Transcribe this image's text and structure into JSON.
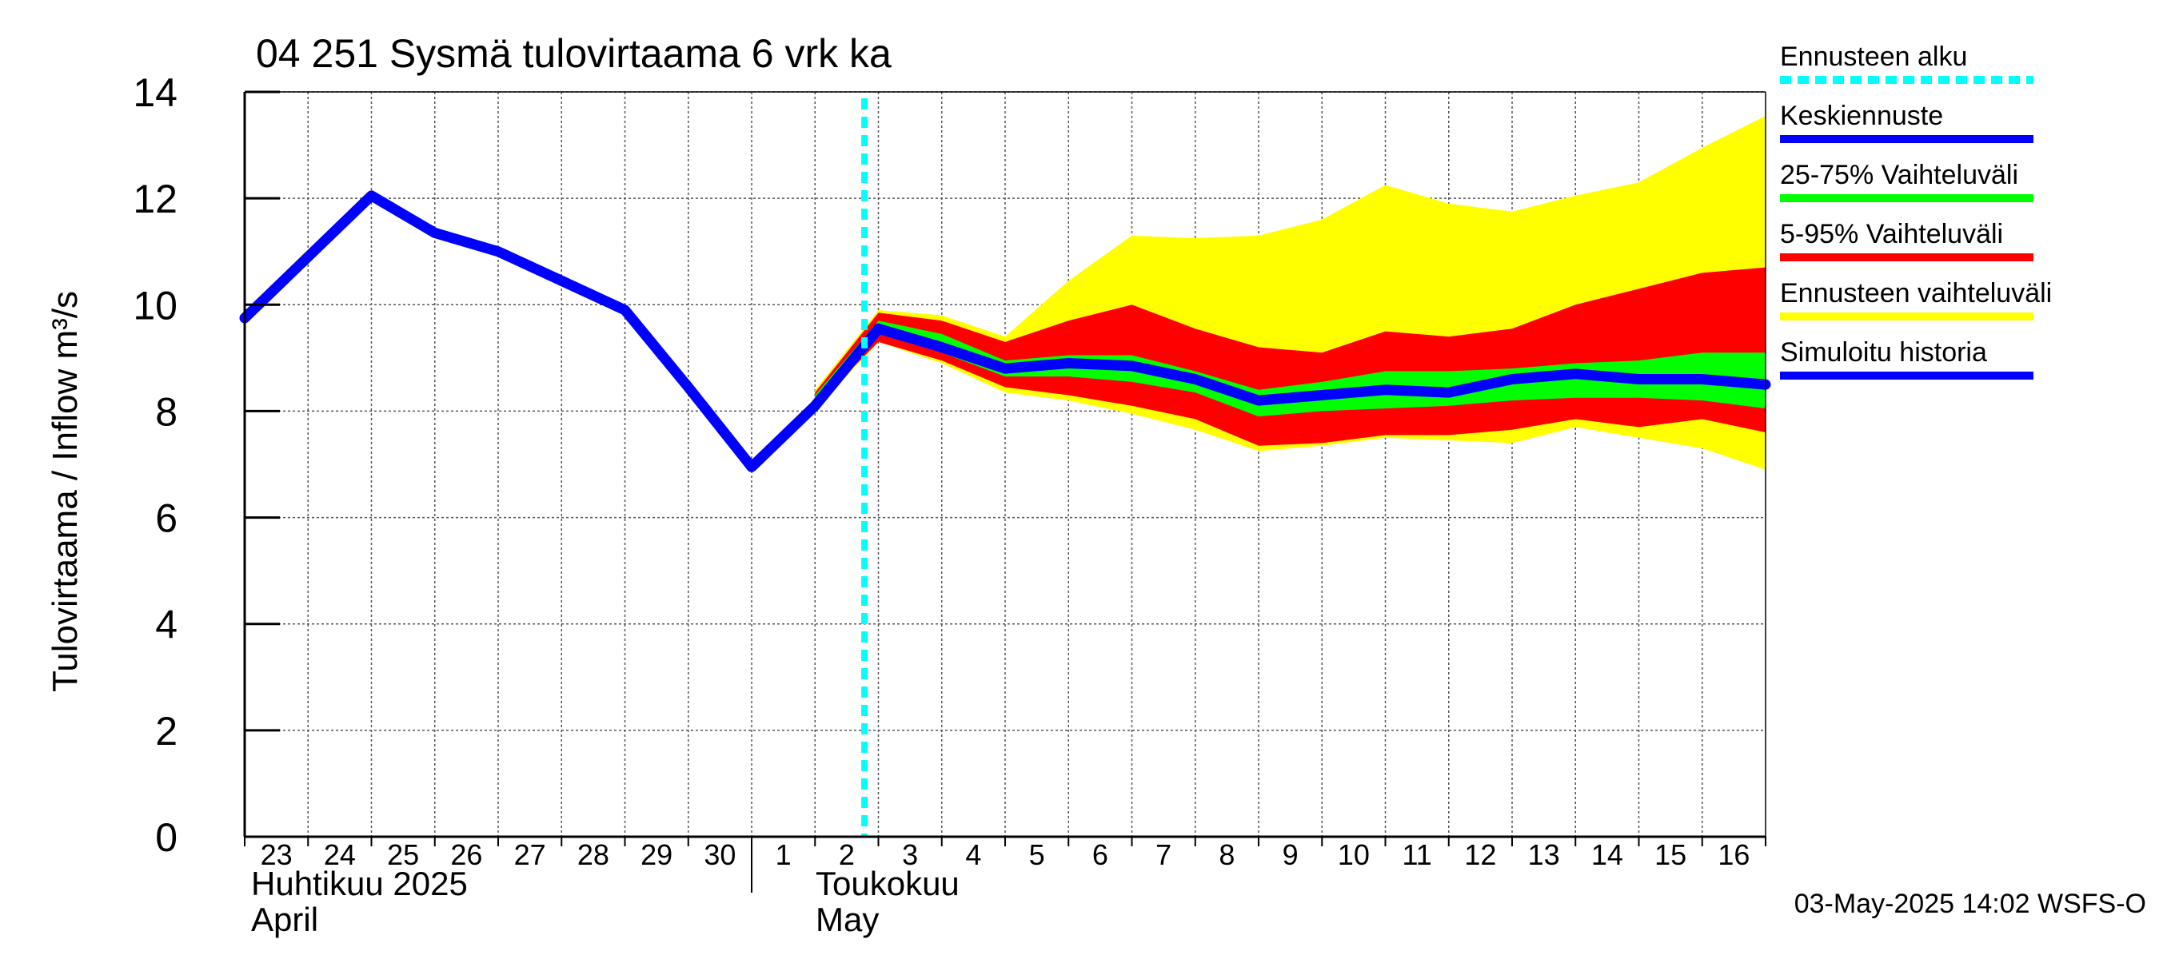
{
  "chart_data": {
    "type": "area",
    "title": "04 251 Sysmä tulovirtaama 6 vrk ka",
    "ylabel": "Tulovirtaama / Inflow    m³/s",
    "ylim": [
      0,
      14
    ],
    "yticks": [
      0,
      2,
      4,
      6,
      8,
      10,
      12,
      14
    ],
    "grid": true,
    "legend_position": "right",
    "x_tick_labels": [
      "23",
      "24",
      "25",
      "26",
      "27",
      "28",
      "29",
      "30",
      "1",
      "2",
      "3",
      "4",
      "5",
      "6",
      "7",
      "8",
      "9",
      "10",
      "11",
      "12",
      "13",
      "14",
      "15",
      "16"
    ],
    "month_labels": [
      {
        "line1": "Huhtikuu  2025",
        "line2": "April"
      },
      {
        "line1": "Toukokuu",
        "line2": "May"
      }
    ],
    "forecast_start": "3",
    "timestamp": "03-May-2025 14:02 WSFS-O",
    "x": [
      "23",
      "24",
      "25",
      "26",
      "27",
      "28",
      "29",
      "30",
      "1",
      "2",
      "3",
      "4",
      "5",
      "6",
      "7",
      "8",
      "9",
      "10",
      "11",
      "12",
      "13",
      "14",
      "15",
      "16",
      "17"
    ],
    "series": [
      {
        "name": "Ennusteen vaihteluväli",
        "color": "#ffff00",
        "kind": "band",
        "x": [
          "2",
          "3",
          "4",
          "5",
          "6",
          "7",
          "8",
          "9",
          "10",
          "11",
          "12",
          "13",
          "14",
          "15",
          "16",
          "17"
        ],
        "lower": [
          8.0,
          9.3,
          8.9,
          8.35,
          8.2,
          7.95,
          7.65,
          7.25,
          7.35,
          7.5,
          7.45,
          7.4,
          7.7,
          7.5,
          7.3,
          6.9
        ],
        "upper": [
          8.4,
          9.9,
          9.8,
          9.4,
          10.45,
          11.3,
          11.25,
          11.3,
          11.6,
          12.25,
          11.9,
          11.75,
          12.05,
          12.3,
          12.95,
          13.55
        ]
      },
      {
        "name": "5-95% Vaihteluväli",
        "color": "#ff0000",
        "kind": "band",
        "x": [
          "2",
          "3",
          "4",
          "5",
          "6",
          "7",
          "8",
          "9",
          "10",
          "11",
          "12",
          "13",
          "14",
          "15",
          "16",
          "17"
        ],
        "lower": [
          8.1,
          9.3,
          8.95,
          8.45,
          8.3,
          8.1,
          7.85,
          7.35,
          7.4,
          7.55,
          7.55,
          7.65,
          7.85,
          7.7,
          7.85,
          7.6
        ],
        "upper": [
          8.35,
          9.85,
          9.7,
          9.3,
          9.7,
          10.0,
          9.55,
          9.2,
          9.1,
          9.5,
          9.4,
          9.55,
          10.0,
          10.3,
          10.6,
          10.7
        ]
      },
      {
        "name": "25-75% Vaihteluväli",
        "color": "#00ff00",
        "kind": "band",
        "x": [
          "2",
          "3",
          "4",
          "5",
          "6",
          "7",
          "8",
          "9",
          "10",
          "11",
          "12",
          "13",
          "14",
          "15",
          "16",
          "17"
        ],
        "lower": [
          8.1,
          9.45,
          9.1,
          8.65,
          8.65,
          8.55,
          8.35,
          7.9,
          8.0,
          8.05,
          8.1,
          8.2,
          8.25,
          8.25,
          8.2,
          8.05
        ],
        "upper": [
          8.3,
          9.7,
          9.45,
          8.95,
          9.05,
          9.05,
          8.75,
          8.4,
          8.55,
          8.75,
          8.75,
          8.8,
          8.9,
          8.95,
          9.1,
          9.1
        ]
      },
      {
        "name": "Simuloitu historia",
        "color": "#0000ff",
        "kind": "line",
        "x": [
          "23",
          "24",
          "25",
          "26",
          "27",
          "28",
          "29",
          "30",
          "1",
          "2",
          "3"
        ],
        "values": [
          9.75,
          10.9,
          12.05,
          11.35,
          11.0,
          10.45,
          9.9,
          8.45,
          6.95,
          8.1,
          9.55
        ]
      },
      {
        "name": "Keskiennuste",
        "color": "#0000ff",
        "kind": "line",
        "x": [
          "3",
          "4",
          "5",
          "6",
          "7",
          "8",
          "9",
          "10",
          "11",
          "12",
          "13",
          "14",
          "15",
          "16",
          "17"
        ],
        "values": [
          9.55,
          9.2,
          8.8,
          8.9,
          8.85,
          8.6,
          8.2,
          8.3,
          8.4,
          8.35,
          8.6,
          8.7,
          8.6,
          8.6,
          8.5
        ]
      },
      {
        "name": "Ennusteen alku",
        "color": "#00ffff",
        "kind": "vline"
      }
    ],
    "legend": [
      {
        "label": "Ennusteen alku",
        "color": "#00ffff",
        "style": "dashed"
      },
      {
        "label": "Keskiennuste",
        "color": "#0000ff",
        "style": "solid"
      },
      {
        "label": "25-75% Vaihteluväli",
        "color": "#00ff00",
        "style": "solid"
      },
      {
        "label": "5-95% Vaihteluväli",
        "color": "#ff0000",
        "style": "solid"
      },
      {
        "label": "Ennusteen vaihteluväli",
        "color": "#ffff00",
        "style": "solid"
      },
      {
        "label": "Simuloitu historia",
        "color": "#0000ff",
        "style": "solid"
      }
    ]
  }
}
